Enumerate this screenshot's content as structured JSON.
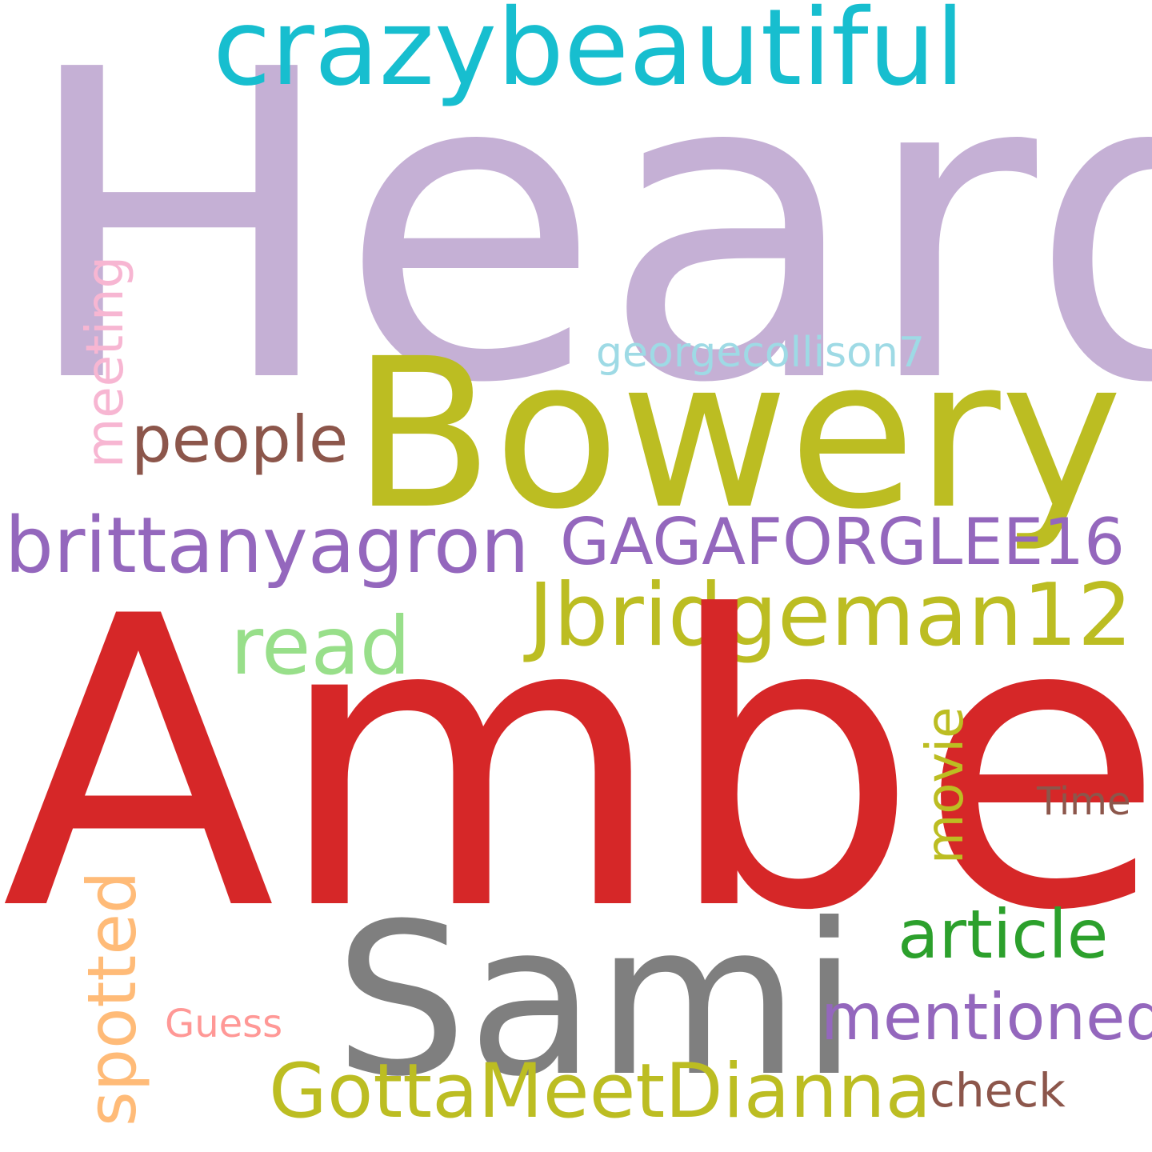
{
  "words": {
    "heard": {
      "text": "Heard",
      "color": "#c5b0d5"
    },
    "amber": {
      "text": "Amber",
      "color": "#d62728"
    },
    "bowery": {
      "text": "Bowery",
      "color": "#bcbd22"
    },
    "sami": {
      "text": "Sami",
      "color": "#7f7f7f"
    },
    "crazybeautiful": {
      "text": "crazybeautiful",
      "color": "#17becf"
    },
    "jbridgeman12": {
      "text": "Jbridgeman12",
      "color": "#bcbd22"
    },
    "gagaforglee16": {
      "text": "GAGAFORGLEE16",
      "color": "#9467bd"
    },
    "brittanyagron": {
      "text": "brittanyagron",
      "color": "#9467bd"
    },
    "gottameetdianna": {
      "text": "GottaMeetDianna",
      "color": "#bcbd22"
    },
    "mentioned": {
      "text": "mentioned",
      "color": "#9467bd"
    },
    "article": {
      "text": "article",
      "color": "#2ca02c"
    },
    "spotted": {
      "text": "spotted",
      "color": "#ffbb78"
    },
    "read": {
      "text": "read",
      "color": "#98df8a"
    },
    "movie": {
      "text": "movie",
      "color": "#bcbd22"
    },
    "people": {
      "text": "people",
      "color": "#8c564b"
    },
    "meeting": {
      "text": "meeting",
      "color": "#f7b6d2"
    },
    "georgecollison7": {
      "text": "georgecollison7",
      "color": "#9edae5"
    },
    "time": {
      "text": "Time",
      "color": "#8c564b"
    },
    "guess": {
      "text": "Guess",
      "color": "#ff9896"
    },
    "check": {
      "text": "check",
      "color": "#8c564b"
    }
  }
}
